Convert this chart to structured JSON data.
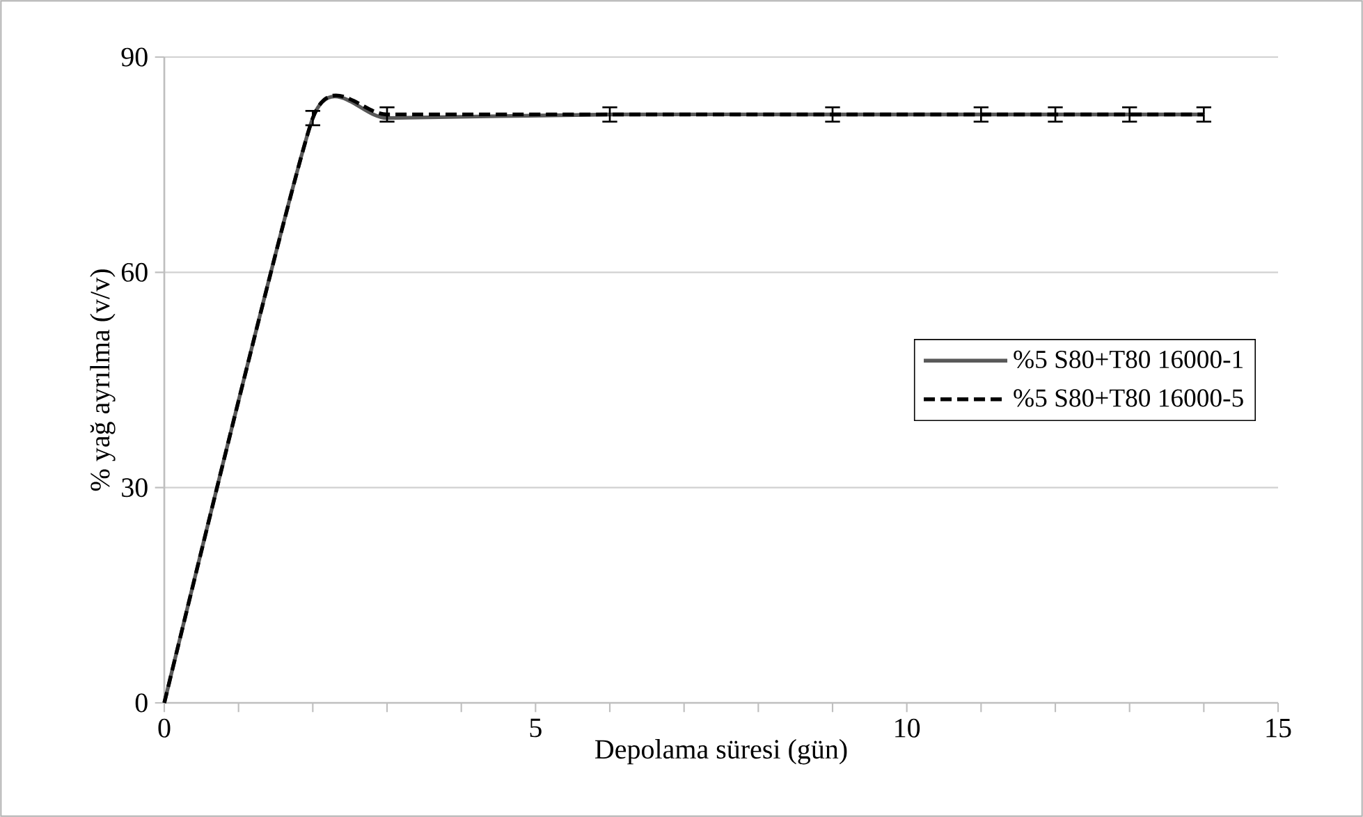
{
  "chart_data": {
    "type": "line",
    "xlabel": "Depolama süresi (gün)",
    "ylabel": "% yağ ayrılma (v/v)",
    "x": [
      0,
      2,
      3,
      6,
      9,
      11,
      12,
      13,
      14
    ],
    "series": [
      {
        "name": "%5 S80+T80 16000-1",
        "color": "#595959",
        "line_style": "solid",
        "values": [
          0,
          81.5,
          81.5,
          82,
          82,
          82,
          82,
          82,
          82
        ]
      },
      {
        "name": "%5 S80+T80 16000-5",
        "color": "#000000",
        "line_style": "dashed",
        "values": [
          0,
          81.5,
          82,
          82,
          82,
          82,
          82,
          82,
          82
        ],
        "errors": [
          null,
          1,
          1,
          1,
          1,
          1,
          1,
          1,
          1
        ]
      }
    ],
    "xlim": [
      0,
      15
    ],
    "xticks": [
      0,
      5,
      10,
      15
    ],
    "ylim": [
      0,
      90
    ],
    "yticks": [
      0,
      30,
      60,
      90
    ],
    "grid": "y",
    "legend": "right",
    "marker": "none"
  }
}
